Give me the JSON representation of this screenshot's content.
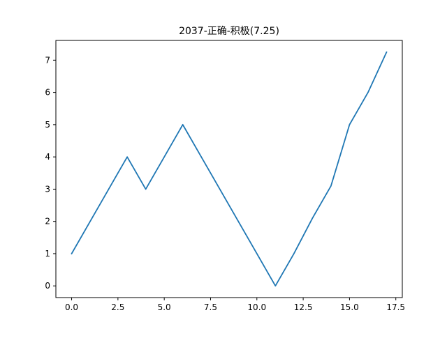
{
  "chart_data": {
    "type": "line",
    "title": "2037-正确-积极(7.25)",
    "xlabel": "",
    "ylabel": "",
    "xlim": [
      -0.85,
      17.85
    ],
    "ylim": [
      -0.3625,
      7.6125
    ],
    "x_ticks": [
      0,
      2.5,
      5,
      7.5,
      10,
      12.5,
      15,
      17.5
    ],
    "x_tick_labels": [
      "0.0",
      "2.5",
      "5.0",
      "7.5",
      "10.0",
      "12.5",
      "15.0",
      "17.5"
    ],
    "y_ticks": [
      0,
      1,
      2,
      3,
      4,
      5,
      6,
      7
    ],
    "y_tick_labels": [
      "0",
      "1",
      "2",
      "3",
      "4",
      "5",
      "6",
      "7"
    ],
    "grid": false,
    "series": [
      {
        "color": "#1f77b4",
        "x": [
          0,
          1,
          2,
          3,
          4,
          5,
          6,
          7,
          8,
          9,
          10,
          11,
          12,
          13,
          14,
          15,
          16,
          17
        ],
        "y": [
          1,
          2,
          3,
          4,
          3,
          4,
          5,
          4,
          3,
          2,
          1,
          0,
          1,
          2.1,
          3.1,
          5,
          6,
          7.25
        ]
      }
    ]
  }
}
